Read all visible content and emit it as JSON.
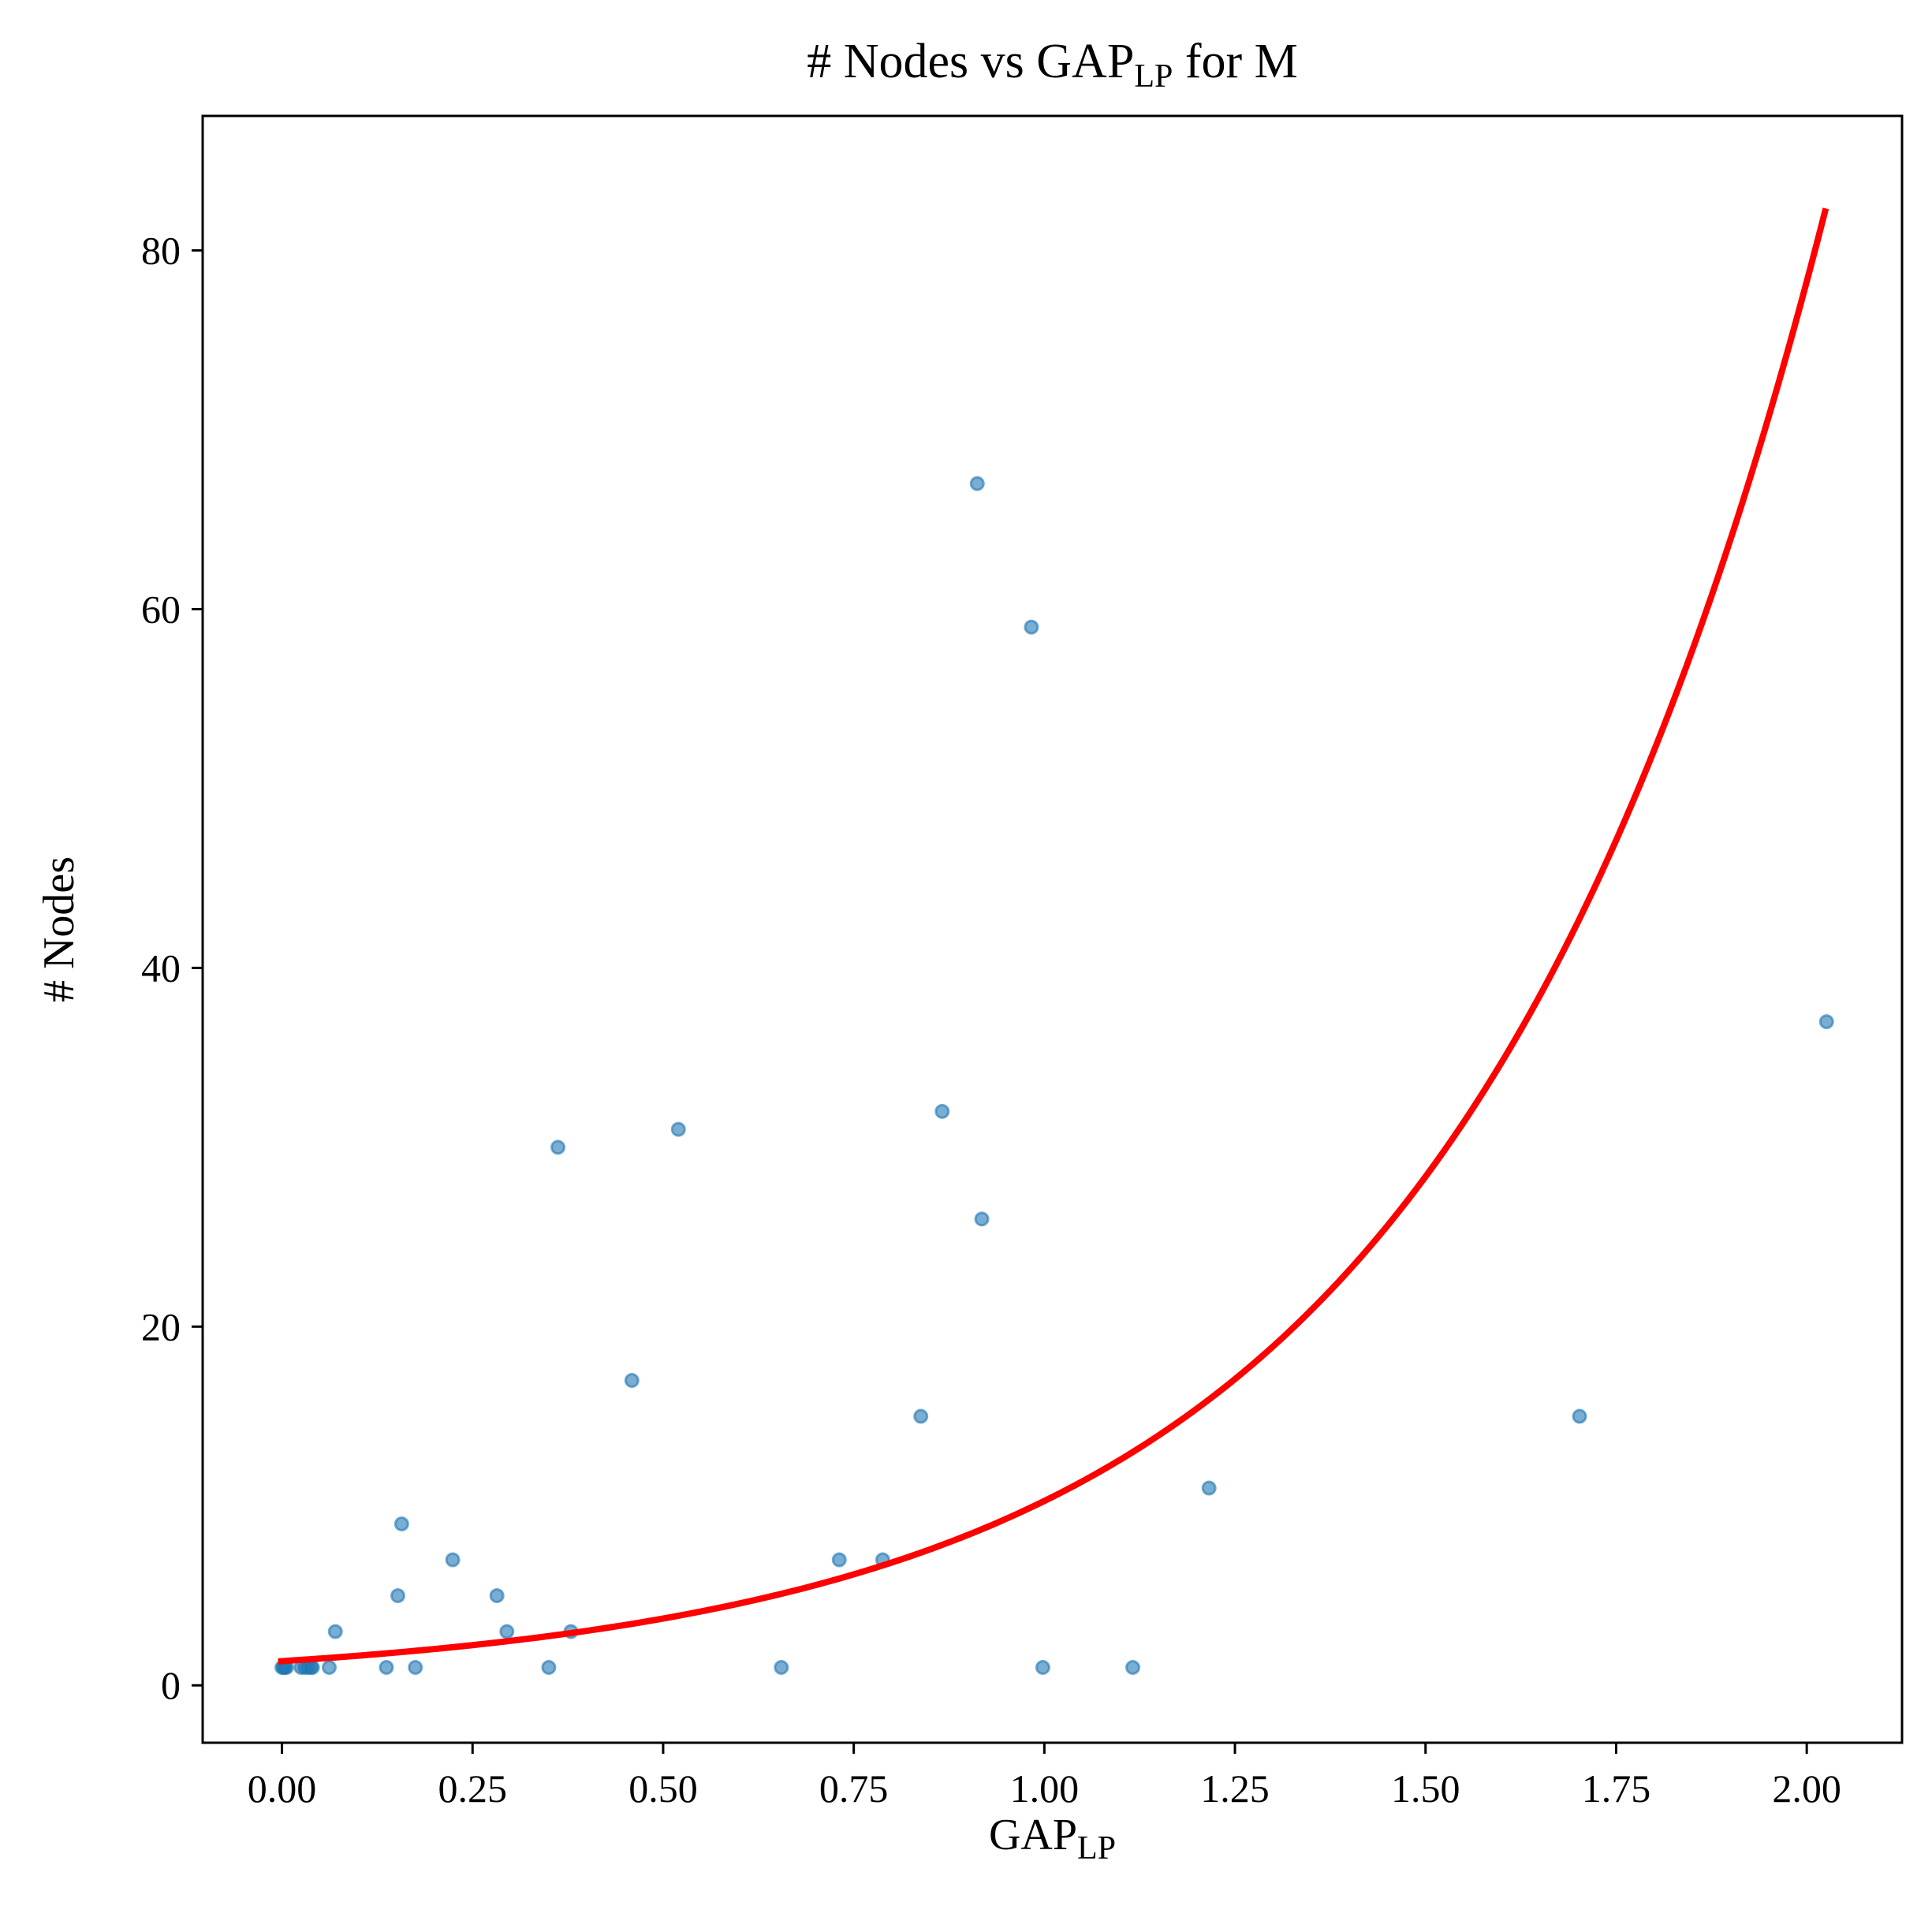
{
  "chart_data": {
    "type": "scatter",
    "title": {
      "prefix": "# Nodes vs GAP",
      "sub": "LP",
      "suffix": " for M"
    },
    "xlabel": {
      "main": "GAP",
      "sub": "LP"
    },
    "ylabel": "# Nodes",
    "xlim": [
      -0.104,
      2.125
    ],
    "ylim": [
      -3.2,
      87.5
    ],
    "xticks": [
      0.0,
      0.25,
      0.5,
      0.75,
      1.0,
      1.25,
      1.5,
      1.75,
      2.0
    ],
    "xtick_labels": [
      "0.00",
      "0.25",
      "0.50",
      "0.75",
      "1.00",
      "1.25",
      "1.50",
      "1.75",
      "2.00"
    ],
    "yticks": [
      0,
      20,
      40,
      60,
      80
    ],
    "ytick_labels": [
      "0",
      "20",
      "40",
      "60",
      "80"
    ],
    "grid": false,
    "colors": {
      "points": "#1f77b4",
      "fit": "#ff0000"
    },
    "series": [
      {
        "type": "scatter",
        "points": [
          [
            0.0,
            1
          ],
          [
            0.002,
            1
          ],
          [
            0.004,
            1
          ],
          [
            0.006,
            1
          ],
          [
            0.025,
            1
          ],
          [
            0.03,
            1
          ],
          [
            0.034,
            1
          ],
          [
            0.038,
            1
          ],
          [
            0.04,
            1
          ],
          [
            0.062,
            1
          ],
          [
            0.07,
            3
          ],
          [
            0.137,
            1
          ],
          [
            0.152,
            5
          ],
          [
            0.157,
            9
          ],
          [
            0.175,
            1
          ],
          [
            0.224,
            7
          ],
          [
            0.282,
            5
          ],
          [
            0.295,
            3
          ],
          [
            0.35,
            1
          ],
          [
            0.362,
            30
          ],
          [
            0.379,
            3
          ],
          [
            0.459,
            17
          ],
          [
            0.52,
            31
          ],
          [
            0.655,
            1
          ],
          [
            0.731,
            7
          ],
          [
            0.788,
            7
          ],
          [
            0.838,
            15
          ],
          [
            0.866,
            32
          ],
          [
            0.912,
            67
          ],
          [
            0.918,
            26
          ],
          [
            0.983,
            59
          ],
          [
            0.998,
            1
          ],
          [
            1.116,
            1
          ],
          [
            1.216,
            11
          ],
          [
            1.702,
            15
          ],
          [
            2.026,
            37
          ]
        ]
      },
      {
        "type": "line",
        "fit": "exponential",
        "a": 1.35,
        "b": 2.03,
        "x_range": [
          -0.005,
          2.025
        ]
      }
    ]
  }
}
